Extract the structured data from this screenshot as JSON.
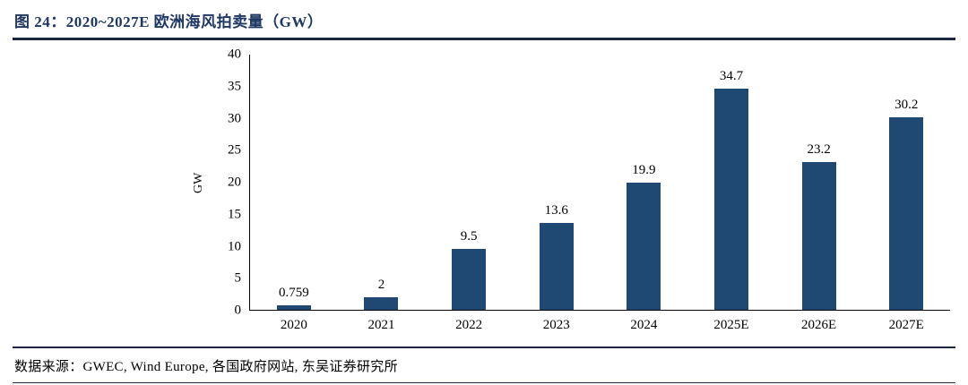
{
  "header": {
    "title": "图 24：2020~2027E 欧洲海风拍卖量（GW）"
  },
  "chart_data": {
    "type": "bar",
    "categories": [
      "2020",
      "2021",
      "2022",
      "2023",
      "2024",
      "2025E",
      "2026E",
      "2027E"
    ],
    "values": [
      0.759,
      2,
      9.5,
      13.6,
      19.9,
      34.7,
      23.2,
      30.2
    ],
    "value_labels": [
      "0.759",
      "2",
      "9.5",
      "13.6",
      "19.9",
      "34.7",
      "23.2",
      "30.2"
    ],
    "title": "",
    "xlabel": "",
    "ylabel": "GW",
    "ylim": [
      0,
      40
    ],
    "ytick_step": 5,
    "grid": false,
    "legend": "none",
    "bar_color": "#1F4873"
  },
  "footer": {
    "source": "数据来源：GWEC, Wind Europe, 各国政府网站, 东吴证券研究所"
  },
  "colors": {
    "accent": "#1F3864",
    "bar": "#1F4873",
    "rule": "#1b2640"
  }
}
